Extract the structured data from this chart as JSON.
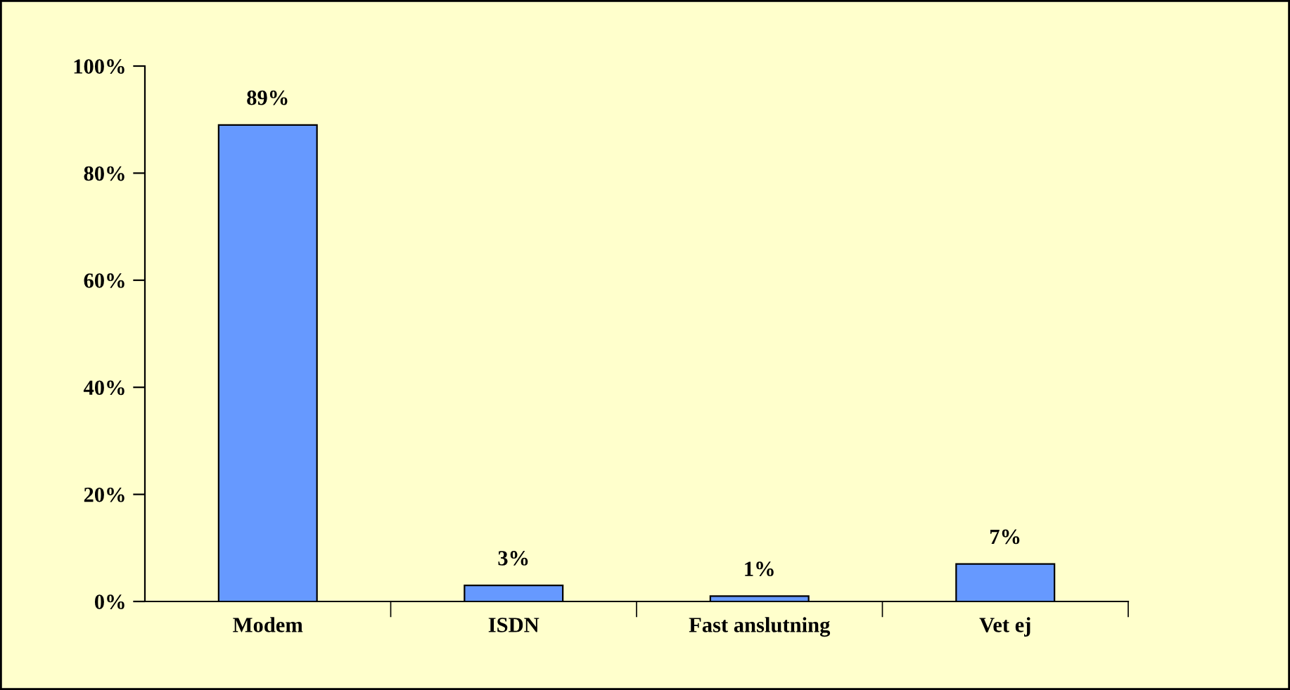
{
  "chart_data": {
    "type": "bar",
    "categories": [
      "Modem",
      "ISDN",
      "Fast anslutning",
      "Vet ej"
    ],
    "values": [
      89,
      3,
      1,
      7
    ],
    "color": "#6699ff",
    "data_labels": true,
    "value_labels": [
      "89%",
      "3%",
      "1%",
      "7%"
    ],
    "ylim": [
      0,
      100
    ],
    "yticks": [
      {
        "value": 0,
        "label": "0%"
      },
      {
        "value": 20,
        "label": "20%"
      },
      {
        "value": 40,
        "label": "40%"
      },
      {
        "value": 60,
        "label": "60%"
      },
      {
        "value": 80,
        "label": "80%"
      },
      {
        "value": 100,
        "label": "100%"
      }
    ],
    "grid": false
  }
}
